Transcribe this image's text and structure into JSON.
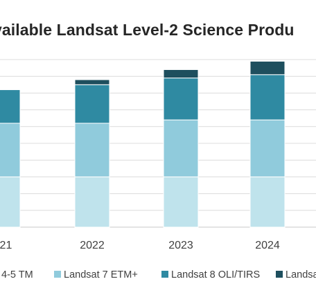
{
  "chart_data": {
    "type": "bar",
    "stacked": true,
    "title": "vailable Landsat Level-2 Science Produ",
    "categories": [
      "021",
      "2022",
      "2023",
      "2024"
    ],
    "ylim": [
      0,
      100
    ],
    "grid": true,
    "legend_position": "bottom",
    "series": [
      {
        "name": "4-5 TM",
        "color": "#bfe3ec",
        "values": [
          30,
          30,
          30,
          30
        ]
      },
      {
        "name": "Landsat 7 ETM+",
        "color": "#90cbdc",
        "values": [
          32,
          32,
          34,
          34
        ]
      },
      {
        "name": "Landsat 8 OLI/TIRS",
        "color": "#2f8aa2",
        "values": [
          20,
          23,
          25,
          27
        ]
      },
      {
        "name": "Landsa",
        "color": "#1e4f5e",
        "values": [
          0,
          3,
          5,
          8
        ]
      }
    ]
  }
}
